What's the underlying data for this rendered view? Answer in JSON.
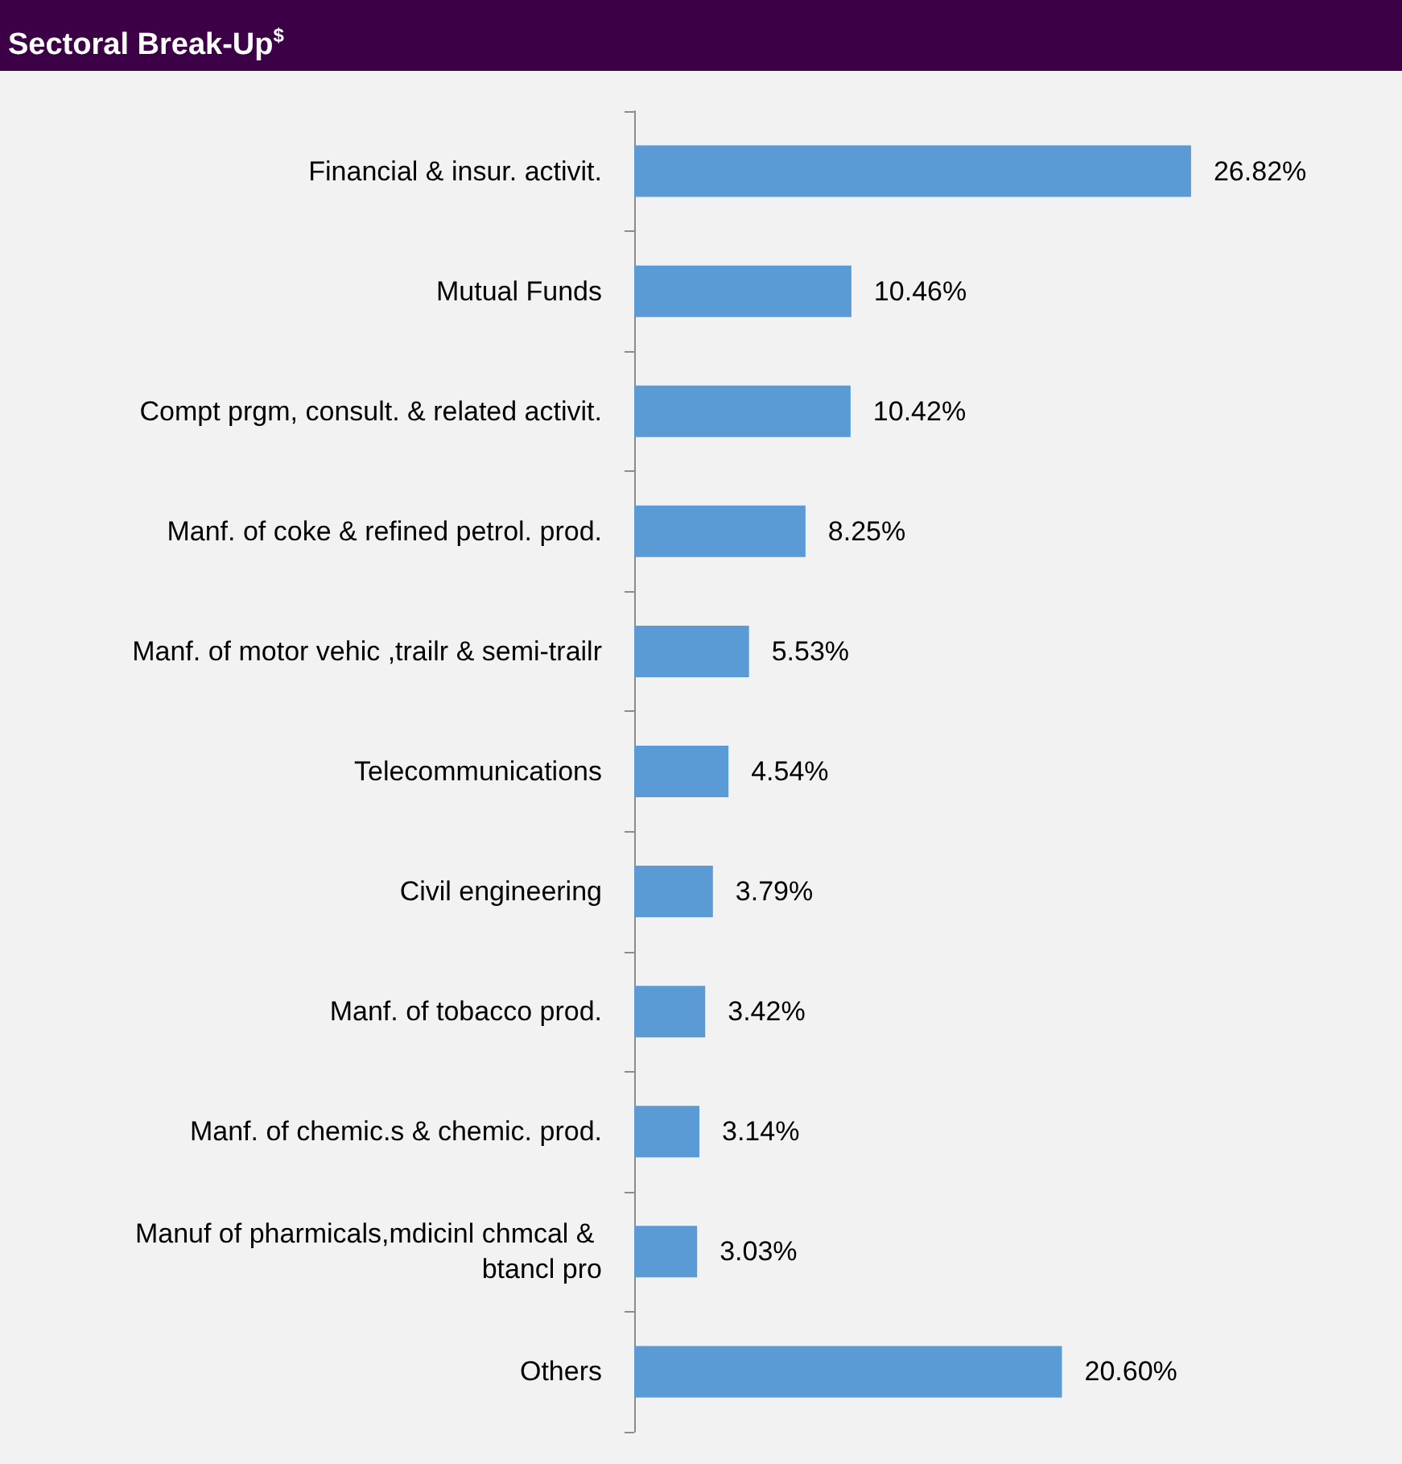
{
  "chart_data": {
    "type": "bar",
    "orientation": "horizontal",
    "title": "Sectoral Break-Up$^{$}$",
    "categories": [
      "Financial & insur. activit.",
      "Mutual Funds",
      "Compt prgm, consult. & related activit.",
      "Manf. of coke & refined petrol. prod.",
      "Manf. of motor vehic ,trailr & semi-trailr",
      "Telecommunications",
      "Civil engineering",
      "Manf. of tobacco prod.",
      "Manf. of chemic.s & chemic. prod.",
      "Manuf of pharmicals,mdicinl chmcal & btancl pro",
      "Others"
    ],
    "values": [
      26.82,
      10.46,
      10.42,
      8.25,
      5.53,
      4.54,
      3.79,
      3.42,
      3.14,
      3.03,
      20.6
    ],
    "value_labels": [
      "26.82%",
      "10.46%",
      "10.42%",
      "8.25%",
      "5.53%",
      "4.54%",
      "3.79%",
      "3.42%",
      "3.14%",
      "3.03%",
      "20.60%"
    ],
    "color": "#5b9bd5"
  }
}
